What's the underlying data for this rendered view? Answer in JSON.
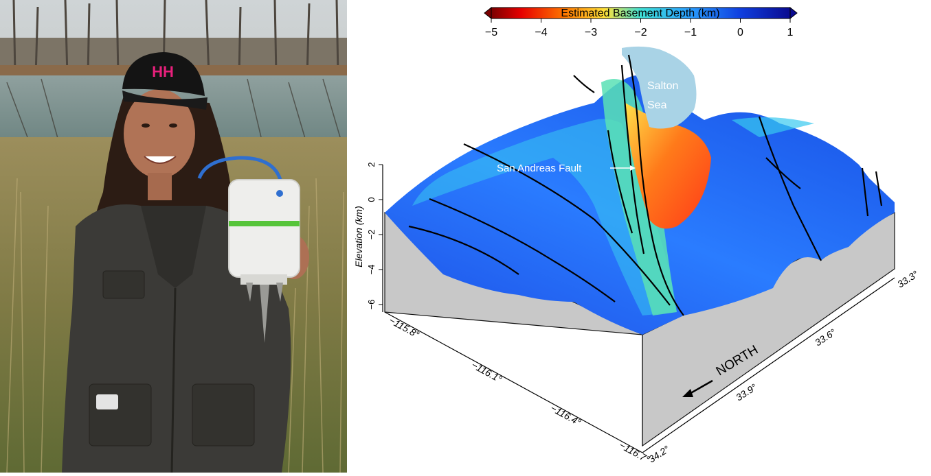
{
  "colorbar": {
    "title": "Estimated Basement Depth (km)",
    "ticks": [
      "−5",
      "−4",
      "−3",
      "−2",
      "−1",
      "0",
      "1"
    ]
  },
  "labels": {
    "salton_sea": [
      "Salton",
      "Sea"
    ],
    "san_andreas": "San Andreas Fault",
    "north": "NORTH",
    "elevation_axis": "Elevation (km)"
  },
  "elevation_ticks": [
    "2",
    "0",
    "−2",
    "−4",
    "−6"
  ],
  "lon_ticks": [
    "−115.8°",
    "−116.1°",
    "−116.4°",
    "−116.7°"
  ],
  "lat_ticks": [
    "33.3°",
    "33.6°",
    "33.9°",
    "34.2°"
  ],
  "colors": {
    "box_side": "#c8c8c8",
    "salton_sea": "#a9d3e6",
    "cap_brand": "#e8207c"
  },
  "icons": [
    "person-photo",
    "seismometer-device",
    "fault-lines"
  ]
}
